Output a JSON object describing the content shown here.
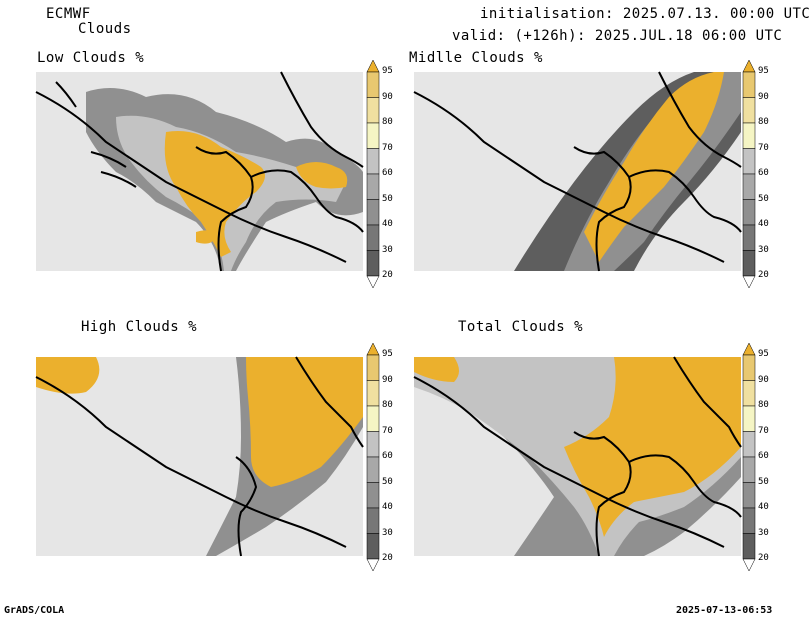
{
  "header": {
    "model": "ECMWF",
    "product": "Clouds",
    "init_label": "initialisation: 2025.07.13. 00:00 UTC",
    "valid_label": "valid: (+126h): 2025.JUL.18 06:00 UTC"
  },
  "panels": [
    {
      "title": "Low Clouds %"
    },
    {
      "title": "Midlle Clouds %"
    },
    {
      "title": "High Clouds %"
    },
    {
      "title": "Total Clouds %"
    }
  ],
  "colorbar": {
    "levels": [
      "20",
      "30",
      "40",
      "50",
      "60",
      "70",
      "80",
      "90",
      "95"
    ],
    "colors": [
      "#444444",
      "#5e5e5e",
      "#777777",
      "#909090",
      "#a8a8a8",
      "#c3c3c3",
      "#f5f5c4",
      "#f0e0a0",
      "#e8c870",
      "#ebb02d"
    ],
    "no_cloud_color": "#e6e6e6"
  },
  "footer": {
    "left": "GrADS/COLA",
    "right": "2025-07-13-06:53"
  }
}
